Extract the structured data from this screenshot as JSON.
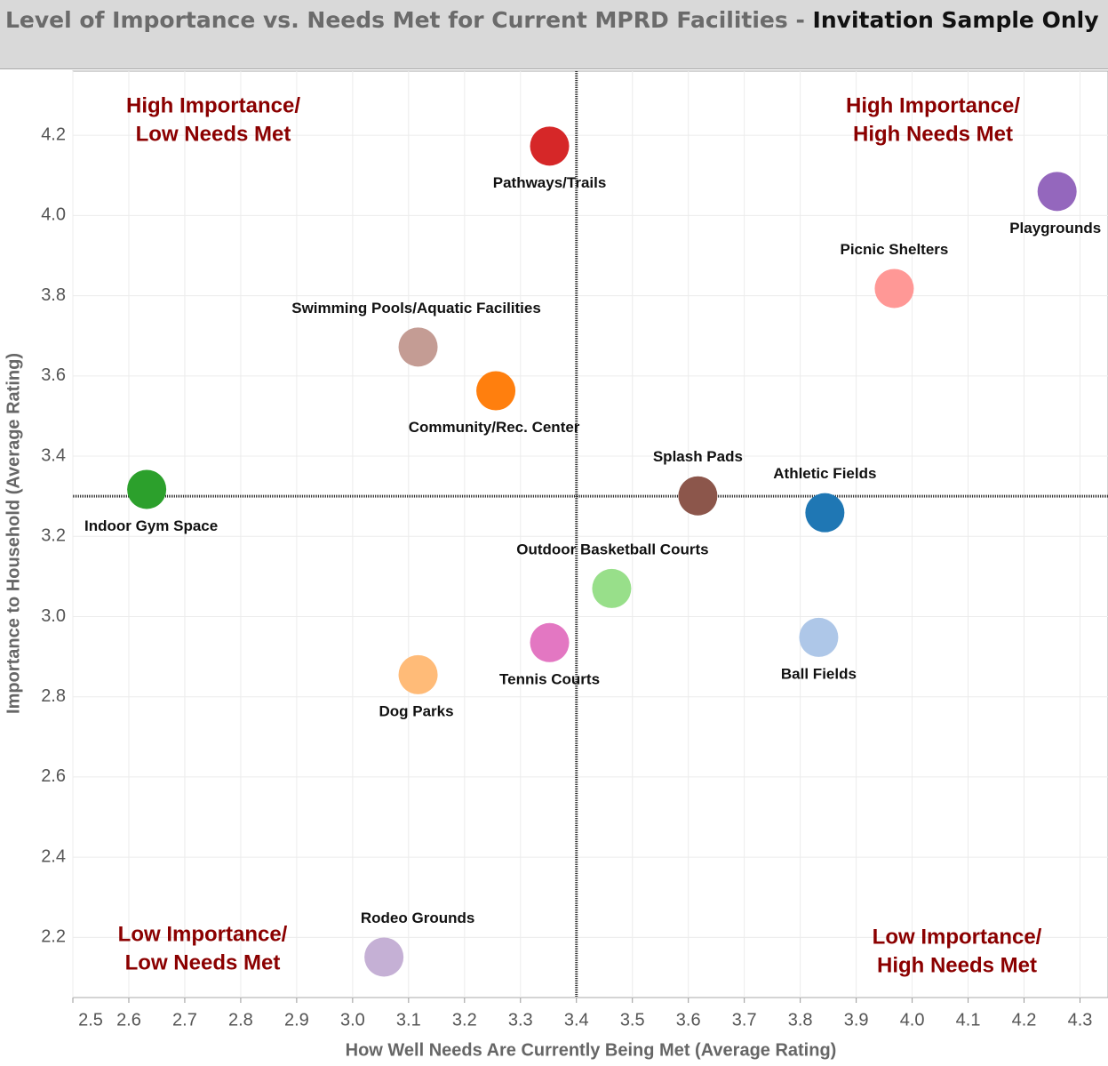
{
  "chart_data": {
    "type": "scatter",
    "title": "Level of Importance vs. Needs Met for Current MPRD Facilities - ",
    "title_emphasis": "Invitation Sample Only",
    "x_label": "How Well Needs Are Currently Being Met (Average Rating)",
    "y_label": "Importance to Household (Average Rating)",
    "xlim": [
      2.5,
      4.35
    ],
    "ylim": [
      2.05,
      4.36
    ],
    "xticks": [
      2.5,
      2.6,
      2.7,
      2.8,
      2.9,
      {
        "value": 3,
        "label": "3.0"
      },
      3.1,
      3.2,
      3.3,
      3.4,
      3.5,
      3.6,
      3.7,
      3.8,
      3.9,
      {
        "value": 4,
        "label": "4.0"
      },
      4.1,
      4.2,
      4.3
    ],
    "yticks": [
      2.2,
      2.4,
      2.6,
      2.8,
      {
        "value": 3,
        "label": "3.0"
      },
      3.2,
      3.4,
      3.6,
      3.8,
      {
        "value": 4,
        "label": "4.0"
      },
      4.2
    ],
    "grid": true,
    "reference_lines": {
      "x": 3.4,
      "y": 3.3
    },
    "quadrant_labels": [
      [
        "High Importance/",
        "Low Needs Met"
      ],
      [
        "High Importance/",
        "High Needs Met"
      ],
      [
        "Low Importance/",
        "Low Needs Met"
      ],
      [
        "Low Importance/",
        "High Needs Met"
      ]
    ],
    "series": [
      {
        "name": "Pathways/Trails",
        "color": "#d62728",
        "x": [
          3.352
        ],
        "values": [
          4.173
        ]
      },
      {
        "name": "Playgrounds",
        "color": "#9467bd",
        "x": [
          4.259
        ],
        "values": [
          4.06
        ]
      },
      {
        "name": "Picnic Shelters",
        "color": "#ff9896",
        "x": [
          3.968
        ],
        "values": [
          3.818
        ]
      },
      {
        "name": "Swimming Pools/Aquatic Facilities",
        "color": "#c49c94",
        "x": [
          3.117
        ],
        "values": [
          3.672
        ]
      },
      {
        "name": "Community/Rec. Center",
        "color": "#ff7f0e",
        "x": [
          3.256
        ],
        "values": [
          3.563
        ]
      },
      {
        "name": "Indoor Gym Space",
        "color": "#2ca02c",
        "x": [
          2.632
        ],
        "values": [
          3.317
        ]
      },
      {
        "name": "Splash Pads",
        "color": "#8c564b",
        "x": [
          3.617
        ],
        "values": [
          3.301
        ]
      },
      {
        "name": "Athletic Fields",
        "color": "#1f77b4",
        "x": [
          3.844
        ],
        "values": [
          3.259
        ]
      },
      {
        "name": "Outdoor Basketball Courts",
        "color": "#98df8a",
        "x": [
          3.463
        ],
        "values": [
          3.07
        ]
      },
      {
        "name": "Tennis Courts",
        "color": "#e377c2",
        "x": [
          3.352
        ],
        "values": [
          2.935
        ]
      },
      {
        "name": "Dog Parks",
        "color": "#ffbb78",
        "x": [
          3.117
        ],
        "values": [
          2.855
        ]
      },
      {
        "name": "Ball Fields",
        "color": "#aec7e8",
        "x": [
          3.833
        ],
        "values": [
          2.948
        ]
      },
      {
        "name": "Rodeo Grounds",
        "color": "#c5b0d5",
        "x": [
          3.056
        ],
        "values": [
          2.151
        ]
      }
    ]
  }
}
